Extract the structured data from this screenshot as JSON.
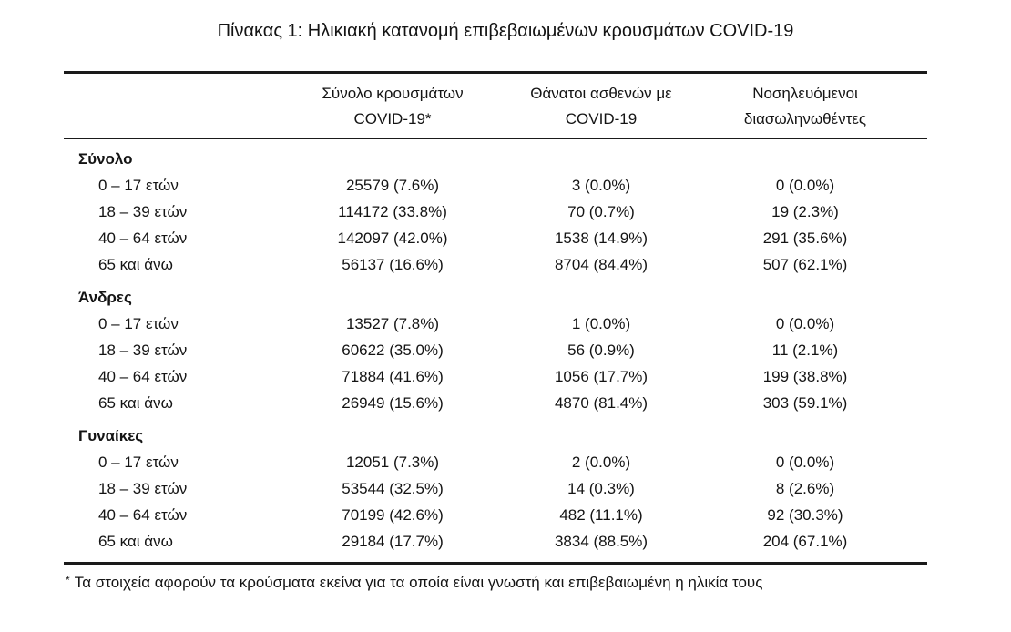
{
  "page": {
    "title": "Πίνακας 1: Ηλικιακή κατανομή επιβεβαιωμένων κρουσμάτων COVID-19"
  },
  "table": {
    "headers": [
      {
        "line1": "Σύνολο κρουσμάτων",
        "line2": "COVID-19*"
      },
      {
        "line1": "Θάνατοι ασθενών με",
        "line2": "COVID-19"
      },
      {
        "line1": "Νοσηλευόμενοι",
        "line2": "διασωληνωθέντες"
      }
    ],
    "sections": [
      {
        "label": "Σύνολο",
        "rows": [
          {
            "age": "0 – 17 ετών",
            "cases": "25579 (7.6%)",
            "deaths": "3 (0.0%)",
            "intubated": "0 (0.0%)"
          },
          {
            "age": "18 – 39 ετών",
            "cases": "114172 (33.8%)",
            "deaths": "70 (0.7%)",
            "intubated": "19 (2.3%)"
          },
          {
            "age": "40 – 64 ετών",
            "cases": "142097 (42.0%)",
            "deaths": "1538 (14.9%)",
            "intubated": "291 (35.6%)"
          },
          {
            "age": "65 και άνω",
            "cases": "56137 (16.6%)",
            "deaths": "8704 (84.4%)",
            "intubated": "507 (62.1%)"
          }
        ]
      },
      {
        "label": "Άνδρες",
        "rows": [
          {
            "age": "0 – 17 ετών",
            "cases": "13527 (7.8%)",
            "deaths": "1 (0.0%)",
            "intubated": "0 (0.0%)"
          },
          {
            "age": "18 – 39 ετών",
            "cases": "60622 (35.0%)",
            "deaths": "56 (0.9%)",
            "intubated": "11 (2.1%)"
          },
          {
            "age": "40 – 64 ετών",
            "cases": "71884 (41.6%)",
            "deaths": "1056 (17.7%)",
            "intubated": "199 (38.8%)"
          },
          {
            "age": "65 και άνω",
            "cases": "26949 (15.6%)",
            "deaths": "4870 (81.4%)",
            "intubated": "303 (59.1%)"
          }
        ]
      },
      {
        "label": "Γυναίκες",
        "rows": [
          {
            "age": "0 – 17 ετών",
            "cases": "12051 (7.3%)",
            "deaths": "2 (0.0%)",
            "intubated": "0 (0.0%)"
          },
          {
            "age": "18 – 39 ετών",
            "cases": "53544 (32.5%)",
            "deaths": "14 (0.3%)",
            "intubated": "8 (2.6%)"
          },
          {
            "age": "40 – 64 ετών",
            "cases": "70199 (42.6%)",
            "deaths": "482 (11.1%)",
            "intubated": "92 (30.3%)"
          },
          {
            "age": "65 και άνω",
            "cases": "29184 (17.7%)",
            "deaths": "3834 (88.5%)",
            "intubated": "204 (67.1%)"
          }
        ]
      }
    ],
    "footnote": {
      "marker": "*",
      "text": "Τα στοιχεία αφορούν τα κρούσματα εκείνα για τα οποία είναι γνωστή και επιβεβαιωμένη η ηλικία τους"
    }
  },
  "colors": {
    "text": "#141414",
    "rule": "#1a1a1a",
    "background": "#ffffff"
  }
}
